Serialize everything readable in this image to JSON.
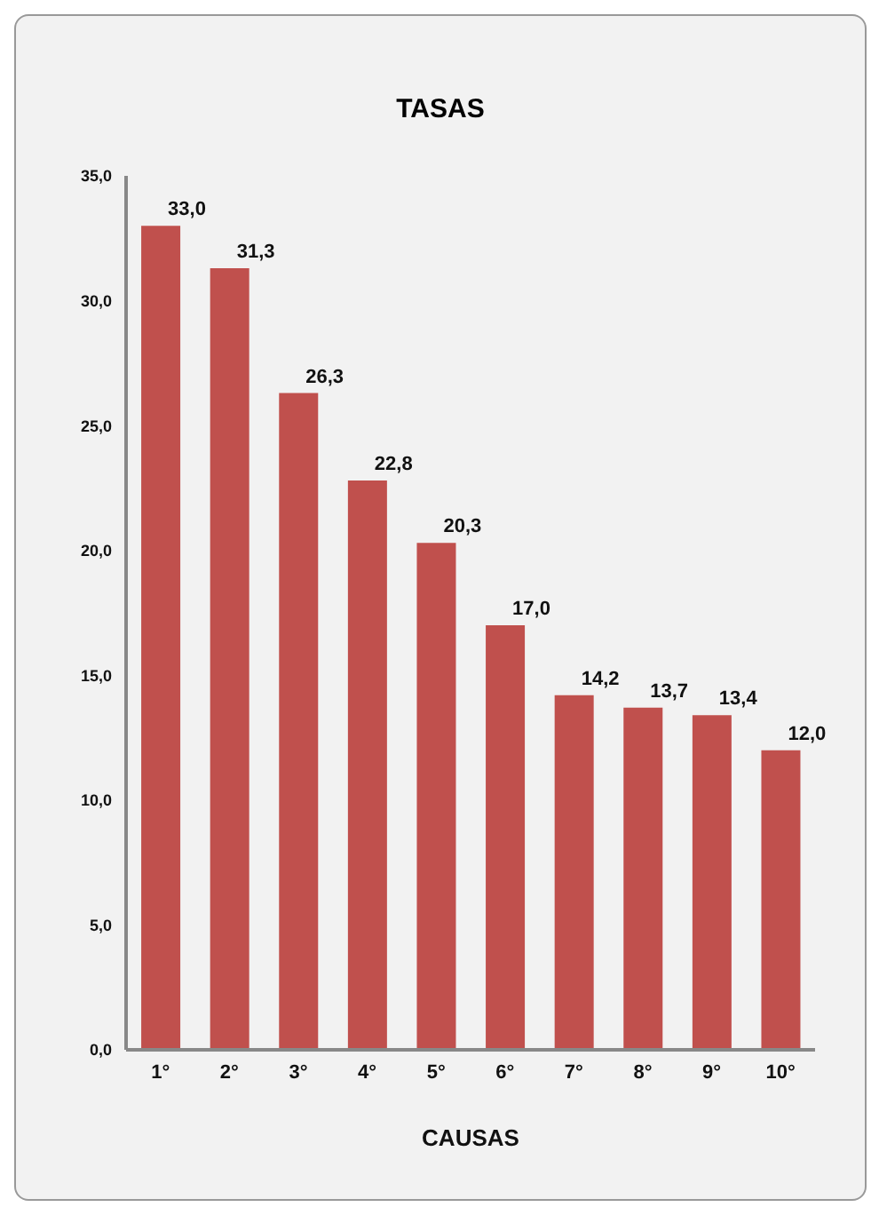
{
  "chart_data": {
    "type": "bar",
    "title": "TASAS",
    "xlabel": "CAUSAS",
    "categories": [
      "1°",
      "2°",
      "3°",
      "4°",
      "5°",
      "6°",
      "7°",
      "8°",
      "9°",
      "10°"
    ],
    "values": [
      33.0,
      31.3,
      26.3,
      22.8,
      20.3,
      17.0,
      14.2,
      13.7,
      13.4,
      12.0
    ],
    "value_labels": [
      "33,0",
      "31,3",
      "26,3",
      "22,8",
      "20,3",
      "17,0",
      "14,2",
      "13,7",
      "13,4",
      "12,0"
    ],
    "color": "#c0504d",
    "ylim": [
      0,
      35
    ],
    "yticks": [
      {
        "value": 0,
        "label": "0,0"
      },
      {
        "value": 5,
        "label": "5,0"
      },
      {
        "value": 10,
        "label": "10,0"
      },
      {
        "value": 15,
        "label": "15,0"
      },
      {
        "value": 20,
        "label": "20,0"
      },
      {
        "value": 25,
        "label": "25,0"
      },
      {
        "value": 30,
        "label": "30,0"
      },
      {
        "value": 35,
        "label": "35,0"
      }
    ],
    "grid": false,
    "legend": false
  }
}
